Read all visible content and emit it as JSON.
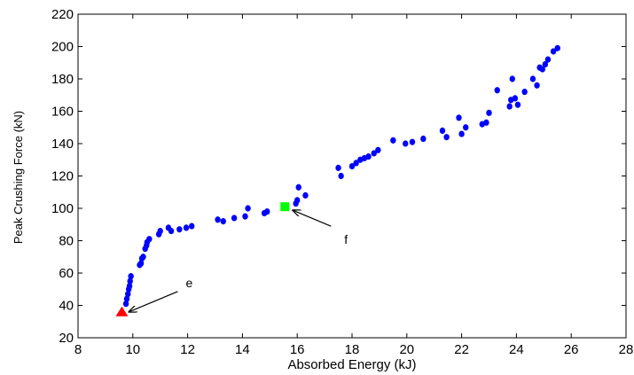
{
  "chart_data": {
    "type": "scatter",
    "title": "",
    "xlabel": "Absorbed Energy (kJ)",
    "ylabel": "Peak Crushing Force (kN)",
    "xlim": [
      8,
      28
    ],
    "ylim": [
      20,
      220
    ],
    "xticks": [
      8,
      10,
      12,
      14,
      16,
      18,
      20,
      22,
      24,
      26,
      28
    ],
    "yticks": [
      20,
      40,
      60,
      80,
      100,
      120,
      140,
      160,
      180,
      200,
      220
    ],
    "grid": false,
    "series": [
      {
        "color": "#0000ff",
        "marker": "circle",
        "points": [
          [
            9.75,
            41
          ],
          [
            9.78,
            44
          ],
          [
            9.82,
            47
          ],
          [
            9.85,
            50
          ],
          [
            9.88,
            52
          ],
          [
            9.9,
            55
          ],
          [
            9.93,
            58
          ],
          [
            10.25,
            65
          ],
          [
            10.3,
            66
          ],
          [
            10.33,
            69
          ],
          [
            10.38,
            70
          ],
          [
            10.45,
            75
          ],
          [
            10.5,
            77
          ],
          [
            10.52,
            79
          ],
          [
            10.6,
            81
          ],
          [
            10.95,
            84
          ],
          [
            11.0,
            86
          ],
          [
            11.3,
            88
          ],
          [
            11.4,
            86
          ],
          [
            11.7,
            87
          ],
          [
            11.95,
            88
          ],
          [
            12.15,
            89
          ],
          [
            13.1,
            93
          ],
          [
            13.3,
            92
          ],
          [
            13.7,
            94
          ],
          [
            14.1,
            95
          ],
          [
            14.2,
            100
          ],
          [
            14.8,
            97
          ],
          [
            14.9,
            98
          ],
          [
            15.95,
            103
          ],
          [
            16.0,
            105
          ],
          [
            16.05,
            113
          ],
          [
            16.3,
            108
          ],
          [
            17.5,
            125
          ],
          [
            17.6,
            120
          ],
          [
            18.0,
            126
          ],
          [
            18.15,
            128
          ],
          [
            18.3,
            130
          ],
          [
            18.45,
            131
          ],
          [
            18.6,
            132
          ],
          [
            18.8,
            134
          ],
          [
            18.95,
            136
          ],
          [
            19.5,
            142
          ],
          [
            19.95,
            140
          ],
          [
            20.2,
            141
          ],
          [
            20.6,
            143
          ],
          [
            21.3,
            148
          ],
          [
            21.45,
            144
          ],
          [
            21.9,
            156
          ],
          [
            22.0,
            146
          ],
          [
            22.15,
            150
          ],
          [
            22.75,
            152
          ],
          [
            22.9,
            153
          ],
          [
            23.0,
            159
          ],
          [
            23.3,
            173
          ],
          [
            23.75,
            163
          ],
          [
            23.8,
            167
          ],
          [
            23.85,
            180
          ],
          [
            23.95,
            168
          ],
          [
            24.05,
            164
          ],
          [
            24.3,
            172
          ],
          [
            24.6,
            180
          ],
          [
            24.75,
            176
          ],
          [
            24.85,
            187
          ],
          [
            24.95,
            186
          ],
          [
            25.05,
            189
          ],
          [
            25.15,
            192
          ],
          [
            25.35,
            197
          ],
          [
            25.5,
            199
          ]
        ]
      }
    ],
    "highlights": [
      {
        "label": "e",
        "marker": "triangle",
        "color": "#ff0000",
        "x": 9.6,
        "y": 36
      },
      {
        "label": "f",
        "marker": "square",
        "color": "#00ff00",
        "x": 15.55,
        "y": 101
      }
    ]
  }
}
